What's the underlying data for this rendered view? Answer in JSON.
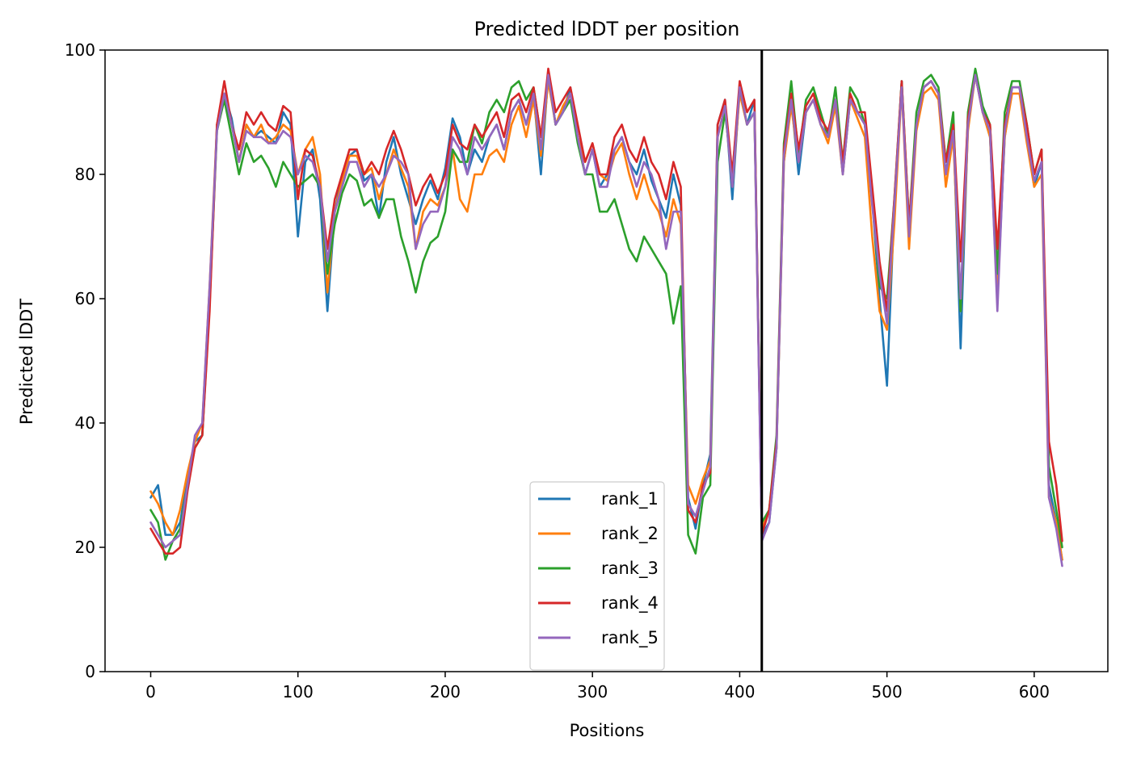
{
  "chart_data": {
    "type": "line",
    "title": "Predicted lDDT per position",
    "xlabel": "Positions",
    "ylabel": "Predicted lDDT",
    "xlim": [
      -31,
      650
    ],
    "ylim": [
      0,
      100
    ],
    "x_ticks": [
      0,
      100,
      200,
      300,
      400,
      500,
      600
    ],
    "y_ticks": [
      0,
      20,
      40,
      60,
      80,
      100
    ],
    "grid": false,
    "legend_position": "lower center",
    "vline": {
      "x": 415,
      "color": "#000000"
    },
    "x": [
      0,
      5,
      10,
      15,
      20,
      25,
      30,
      35,
      40,
      45,
      50,
      55,
      60,
      65,
      70,
      75,
      80,
      85,
      90,
      95,
      100,
      105,
      110,
      115,
      120,
      125,
      130,
      135,
      140,
      145,
      150,
      155,
      160,
      165,
      170,
      175,
      180,
      185,
      190,
      195,
      200,
      205,
      210,
      215,
      220,
      225,
      230,
      235,
      240,
      245,
      250,
      255,
      260,
      265,
      270,
      275,
      280,
      285,
      290,
      295,
      300,
      305,
      310,
      315,
      320,
      325,
      330,
      335,
      340,
      345,
      350,
      355,
      360,
      365,
      370,
      375,
      380,
      385,
      390,
      395,
      400,
      405,
      410,
      415,
      420,
      425,
      430,
      435,
      440,
      445,
      450,
      455,
      460,
      465,
      470,
      475,
      480,
      485,
      490,
      495,
      500,
      505,
      510,
      515,
      520,
      525,
      530,
      535,
      540,
      545,
      550,
      555,
      560,
      565,
      570,
      575,
      580,
      585,
      590,
      595,
      600,
      605,
      610,
      615,
      619
    ],
    "series": [
      {
        "name": "rank_1",
        "color": "#1f77b4",
        "values": [
          28,
          30,
          22,
          22,
          24,
          31,
          37,
          38,
          60,
          88,
          93,
          89,
          82,
          88,
          86,
          87,
          86,
          85,
          90,
          88,
          70,
          82,
          84,
          76,
          58,
          74,
          80,
          83,
          84,
          79,
          80,
          73,
          82,
          86,
          80,
          76,
          72,
          76,
          79,
          76,
          81,
          89,
          86,
          80,
          84,
          82,
          86,
          88,
          84,
          90,
          92,
          88,
          93,
          80,
          96,
          88,
          90,
          94,
          86,
          80,
          84,
          78,
          80,
          84,
          86,
          82,
          80,
          84,
          79,
          76,
          73,
          80,
          75,
          28,
          23,
          30,
          35,
          88,
          92,
          76,
          94,
          88,
          92,
          22,
          24,
          36,
          82,
          92,
          80,
          90,
          92,
          88,
          86,
          92,
          80,
          92,
          90,
          88,
          76,
          60,
          46,
          75,
          95,
          70,
          88,
          94,
          95,
          93,
          80,
          88,
          52,
          88,
          96,
          90,
          86,
          60,
          86,
          94,
          94,
          86,
          78,
          82,
          30,
          24,
          18
        ]
      },
      {
        "name": "rank_2",
        "color": "#ff7f0e",
        "values": [
          29,
          27,
          24,
          22,
          26,
          32,
          37,
          40,
          62,
          88,
          93,
          88,
          82,
          88,
          86,
          88,
          85,
          86,
          88,
          87,
          80,
          84,
          86,
          80,
          61,
          74,
          79,
          83,
          83,
          80,
          81,
          76,
          80,
          84,
          81,
          78,
          68,
          74,
          76,
          75,
          78,
          84,
          76,
          74,
          80,
          80,
          83,
          84,
          82,
          88,
          91,
          86,
          92,
          83,
          95,
          88,
          91,
          93,
          86,
          82,
          85,
          80,
          79,
          83,
          85,
          80,
          76,
          80,
          76,
          74,
          70,
          76,
          72,
          30,
          27,
          31,
          34,
          86,
          91,
          78,
          93,
          88,
          90,
          23,
          26,
          36,
          82,
          91,
          82,
          90,
          92,
          88,
          85,
          91,
          80,
          92,
          89,
          86,
          70,
          58,
          55,
          72,
          94,
          68,
          87,
          93,
          94,
          92,
          78,
          86,
          58,
          87,
          96,
          90,
          86,
          62,
          86,
          93,
          93,
          85,
          78,
          80,
          28,
          24,
          18
        ]
      },
      {
        "name": "rank_3",
        "color": "#2ca02c",
        "values": [
          26,
          24,
          18,
          21,
          23,
          30,
          36,
          38,
          59,
          87,
          92,
          86,
          80,
          85,
          82,
          83,
          81,
          78,
          82,
          80,
          78,
          79,
          80,
          78,
          64,
          72,
          77,
          80,
          79,
          75,
          76,
          73,
          76,
          76,
          70,
          66,
          61,
          66,
          69,
          70,
          74,
          84,
          82,
          82,
          88,
          85,
          90,
          92,
          90,
          94,
          95,
          92,
          94,
          86,
          96,
          88,
          90,
          92,
          85,
          80,
          80,
          74,
          74,
          76,
          72,
          68,
          66,
          70,
          68,
          66,
          64,
          56,
          62,
          22,
          19,
          28,
          30,
          82,
          90,
          80,
          94,
          88,
          90,
          24,
          26,
          38,
          85,
          95,
          83,
          92,
          94,
          90,
          86,
          94,
          82,
          94,
          92,
          88,
          76,
          62,
          60,
          76,
          95,
          72,
          90,
          95,
          96,
          94,
          82,
          90,
          58,
          90,
          97,
          91,
          88,
          64,
          90,
          95,
          95,
          88,
          80,
          84,
          33,
          26,
          20
        ]
      },
      {
        "name": "rank_4",
        "color": "#d62728",
        "values": [
          23,
          21,
          19,
          19,
          20,
          29,
          36,
          38,
          58,
          88,
          95,
          88,
          84,
          90,
          88,
          90,
          88,
          87,
          91,
          90,
          76,
          84,
          83,
          78,
          68,
          76,
          80,
          84,
          84,
          80,
          82,
          80,
          84,
          87,
          84,
          80,
          75,
          78,
          80,
          77,
          80,
          88,
          85,
          84,
          88,
          86,
          88,
          90,
          86,
          92,
          93,
          90,
          94,
          86,
          97,
          90,
          92,
          94,
          88,
          82,
          85,
          80,
          80,
          86,
          88,
          84,
          82,
          86,
          82,
          80,
          76,
          82,
          78,
          26,
          24,
          30,
          32,
          88,
          92,
          80,
          95,
          90,
          92,
          22,
          26,
          37,
          84,
          93,
          84,
          91,
          93,
          89,
          87,
          92,
          82,
          93,
          90,
          90,
          78,
          66,
          58,
          76,
          95,
          72,
          88,
          94,
          95,
          93,
          82,
          88,
          66,
          89,
          96,
          90,
          88,
          68,
          88,
          94,
          94,
          88,
          80,
          84,
          37,
          30,
          21
        ]
      },
      {
        "name": "rank_5",
        "color": "#9467bd",
        "values": [
          24,
          22,
          20,
          21,
          22,
          30,
          38,
          40,
          62,
          87,
          93,
          88,
          82,
          87,
          86,
          86,
          85,
          85,
          87,
          86,
          80,
          83,
          82,
          78,
          66,
          74,
          78,
          82,
          82,
          78,
          80,
          78,
          80,
          83,
          82,
          80,
          68,
          72,
          74,
          74,
          78,
          86,
          84,
          80,
          86,
          84,
          86,
          88,
          84,
          90,
          92,
          88,
          93,
          84,
          96,
          88,
          90,
          93,
          86,
          80,
          84,
          78,
          78,
          84,
          86,
          82,
          78,
          82,
          80,
          76,
          68,
          74,
          74,
          27,
          25,
          29,
          33,
          86,
          91,
          78,
          94,
          88,
          90,
          21,
          24,
          36,
          83,
          92,
          82,
          90,
          92,
          88,
          86,
          92,
          80,
          92,
          90,
          88,
          75,
          64,
          56,
          75,
          94,
          70,
          88,
          94,
          95,
          93,
          80,
          87,
          60,
          88,
          96,
          90,
          87,
          58,
          87,
          94,
          94,
          86,
          79,
          82,
          28,
          23,
          17
        ]
      }
    ]
  }
}
